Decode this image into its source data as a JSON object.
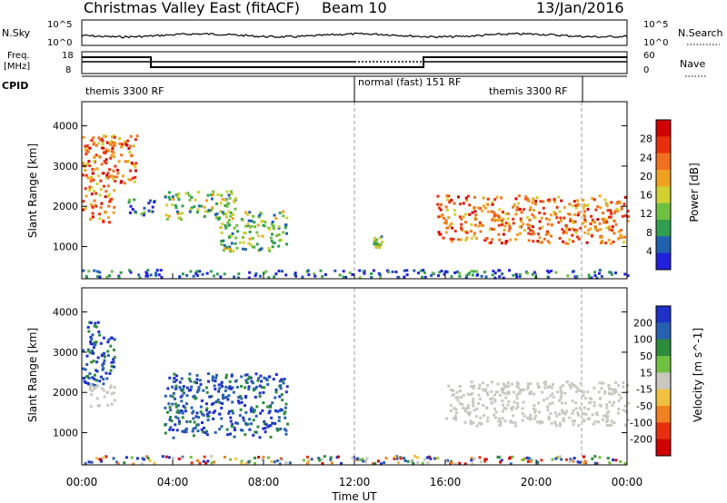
{
  "header": {
    "title": "Christmas Valley East (fitACF)",
    "beam": "Beam 10",
    "date": "13/Jan/2016"
  },
  "noise_panel": {
    "left_label": "N.Sky",
    "left_ticks": [
      "10^5",
      "10^0"
    ],
    "right_label": "N.Search",
    "right_ticks": [
      "10^5",
      "10^0"
    ]
  },
  "freq_panel": {
    "left_label_1": "Freq.",
    "left_label_2": "[MHz]",
    "left_ticks": [
      "18",
      "8"
    ],
    "right_label": "Nave",
    "right_ticks": [
      "60",
      "0"
    ]
  },
  "cpid": {
    "label": "CPID",
    "segments": [
      {
        "name": "themis 3300 RF"
      },
      {
        "name": "normal (fast) 151 RF"
      },
      {
        "name": "themis 3300 RF"
      }
    ]
  },
  "time_axis": {
    "label": "Time UT",
    "ticks": [
      "00:00",
      "04:00",
      "08:00",
      "12:00",
      "16:00",
      "20:00",
      "00:00"
    ]
  },
  "chart_data": [
    {
      "type": "heatmap",
      "title": "",
      "ylabel": "Slant Range [km]",
      "xlabel": "",
      "y_ticks": [
        "1000",
        "2000",
        "3000",
        "4000"
      ],
      "ylim": [
        200,
        4600
      ],
      "xlim_hours": [
        0,
        24
      ],
      "colorbar": {
        "label": "Power [dB]",
        "ticks": [
          "4",
          "8",
          "12",
          "16",
          "20",
          "24",
          "28"
        ],
        "colors": [
          "#2020dd",
          "#2060b0",
          "#30a050",
          "#70c040",
          "#d0d030",
          "#f0a020",
          "#f07020",
          "#e83010",
          "#d00000"
        ]
      },
      "regions": [
        {
          "t": [
            0.0,
            1.4
          ],
          "range": [
            1600,
            3800
          ],
          "level": "high"
        },
        {
          "t": [
            1.0,
            2.4
          ],
          "range": [
            2600,
            3800
          ],
          "level": "high"
        },
        {
          "t": [
            2.0,
            3.2
          ],
          "range": [
            1800,
            2200
          ],
          "level": "low"
        },
        {
          "t": [
            3.6,
            6.8
          ],
          "range": [
            1700,
            2400
          ],
          "level": "medium"
        },
        {
          "t": [
            6.0,
            9.0
          ],
          "range": [
            900,
            1900
          ],
          "level": "medium"
        },
        {
          "t": [
            12.8,
            13.2
          ],
          "range": [
            1000,
            1300
          ],
          "level": "medium"
        },
        {
          "t": [
            15.6,
            24.0
          ],
          "range": [
            1100,
            2300
          ],
          "level": "high"
        },
        {
          "t": [
            0.0,
            24.0
          ],
          "range": [
            250,
            450
          ],
          "level": "low"
        }
      ]
    },
    {
      "type": "heatmap",
      "title": "",
      "ylabel": "Slant Range [km]",
      "xlabel": "Time UT",
      "y_ticks": [
        "1000",
        "2000",
        "3000",
        "4000"
      ],
      "ylim": [
        200,
        4600
      ],
      "xlim_hours": [
        0,
        24
      ],
      "colorbar": {
        "label": "Velocity [m s^-1]",
        "ticks": [
          "200",
          "100",
          "50",
          "15",
          "-15",
          "-50",
          "-100",
          "-200"
        ],
        "colors": [
          "#1e32c8",
          "#2860b0",
          "#2c8c3c",
          "#70c040",
          "#c8c8c0",
          "#f0c040",
          "#f08020",
          "#e83010",
          "#d00000"
        ]
      },
      "regions": [
        {
          "t": [
            0.0,
            1.4
          ],
          "range": [
            2200,
            3800
          ],
          "velocity": "positive"
        },
        {
          "t": [
            0.3,
            1.4
          ],
          "range": [
            1600,
            2200
          ],
          "velocity": "near-zero"
        },
        {
          "t": [
            3.6,
            9.0
          ],
          "range": [
            900,
            2500
          ],
          "velocity": "positive"
        },
        {
          "t": [
            16.0,
            24.0
          ],
          "range": [
            1200,
            2300
          ],
          "velocity": "near-zero"
        },
        {
          "t": [
            0.0,
            24.0
          ],
          "range": [
            250,
            450
          ],
          "velocity": "mixed"
        }
      ]
    }
  ]
}
